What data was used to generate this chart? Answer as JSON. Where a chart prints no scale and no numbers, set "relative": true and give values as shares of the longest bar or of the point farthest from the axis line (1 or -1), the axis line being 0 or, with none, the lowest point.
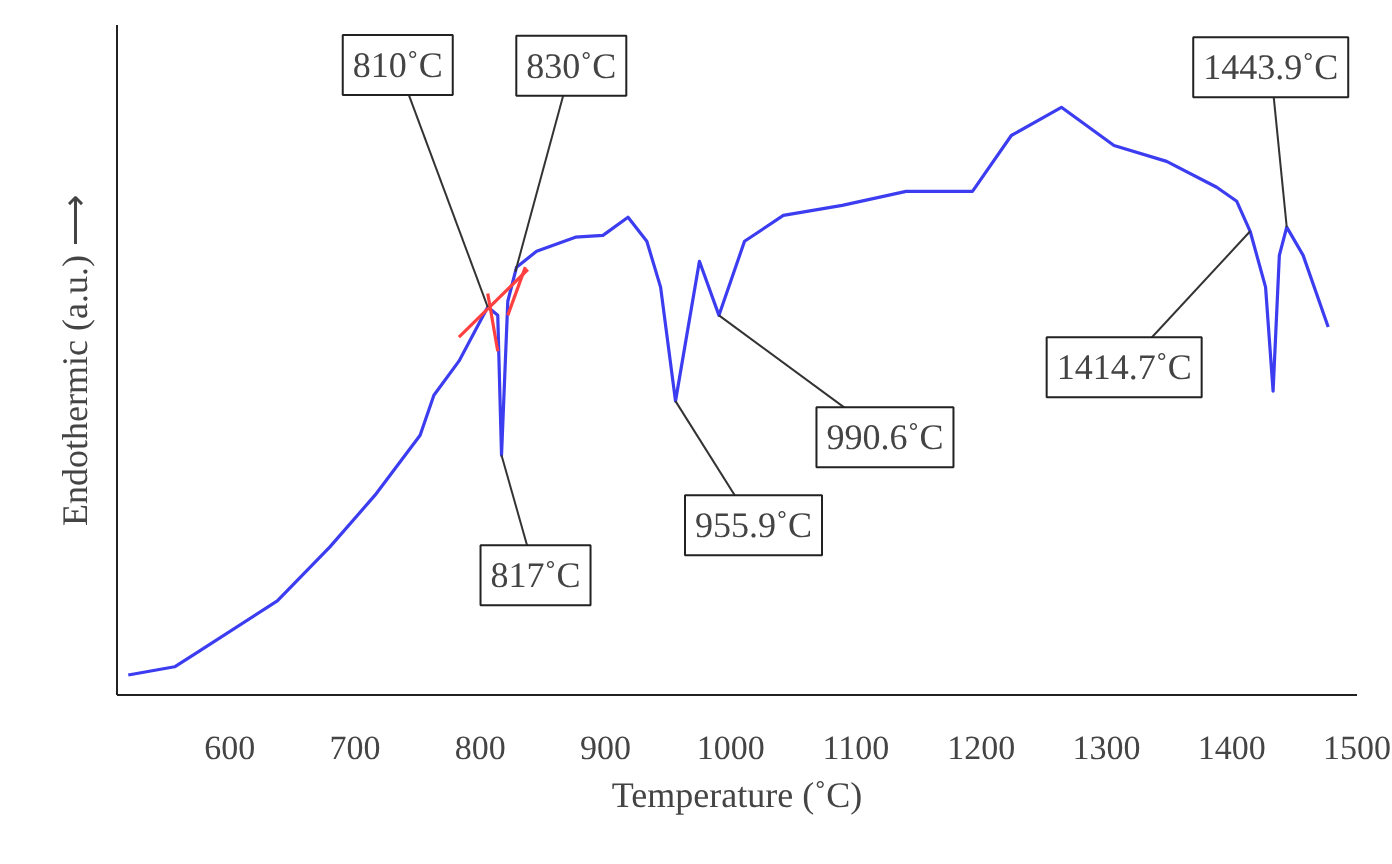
{
  "chart_data": {
    "type": "line",
    "xlabel": "Temperature (˚C)",
    "ylabel": "Endothermic (a.u.) ⟶",
    "relative": true,
    "xlim": [
      510,
      1500
    ],
    "xticks": [
      600,
      700,
      800,
      900,
      1000,
      1100,
      1200,
      1300,
      1400,
      1500
    ],
    "series": [
      {
        "color": "#3c3cf0",
        "x": [
          519,
          556,
          576,
          638,
          680,
          716,
          752,
          763,
          783,
          806,
          814,
          817,
          822,
          829,
          845,
          876,
          898,
          918,
          933,
          944,
          955.9,
          975,
          990.6,
          1011,
          1042,
          1089,
          1140,
          1193,
          1224,
          1264,
          1306,
          1348,
          1388,
          1404,
          1414.7,
          1427,
          1433,
          1438,
          1443.9,
          1457,
          1477
        ],
        "values": [
          0.034,
          0.048,
          0.075,
          0.16,
          0.252,
          0.34,
          0.442,
          0.51,
          0.568,
          0.66,
          0.646,
          0.408,
          0.67,
          0.728,
          0.755,
          0.779,
          0.782,
          0.813,
          0.772,
          0.694,
          0.5,
          0.738,
          0.646,
          0.772,
          0.816,
          0.833,
          0.857,
          0.857,
          0.952,
          1,
          0.935,
          0.908,
          0.864,
          0.84,
          0.789,
          0.694,
          0.517,
          0.748,
          0.796,
          0.748,
          0.626
        ]
      },
      {
        "type": "line",
        "color": "#ff4040",
        "x": [
          783,
          838
        ],
        "values": [
          0.609,
          0.724
        ]
      },
      {
        "type": "line",
        "color": "#ff4040",
        "x": [
          806,
          814
        ],
        "values": [
          0.683,
          0.585
        ]
      },
      {
        "type": "line",
        "color": "#ff4040",
        "x": [
          822,
          836
        ],
        "values": [
          0.646,
          0.728
        ]
      }
    ],
    "annotations": [
      {
        "text": "810˚C",
        "x": 806,
        "y": 0.66
      },
      {
        "text": "830˚C",
        "x": 828,
        "y": 0.72
      },
      {
        "text": "817˚C",
        "x": 817,
        "y": 0.408
      },
      {
        "text": "955.9˚C",
        "x": 955.9,
        "y": 0.5
      },
      {
        "text": "990.6˚C",
        "x": 990.6,
        "y": 0.646
      },
      {
        "text": "1414.7˚C",
        "x": 1414.7,
        "y": 0.789
      },
      {
        "text": "1443.9˚C",
        "x": 1443.9,
        "y": 0.796
      }
    ]
  }
}
